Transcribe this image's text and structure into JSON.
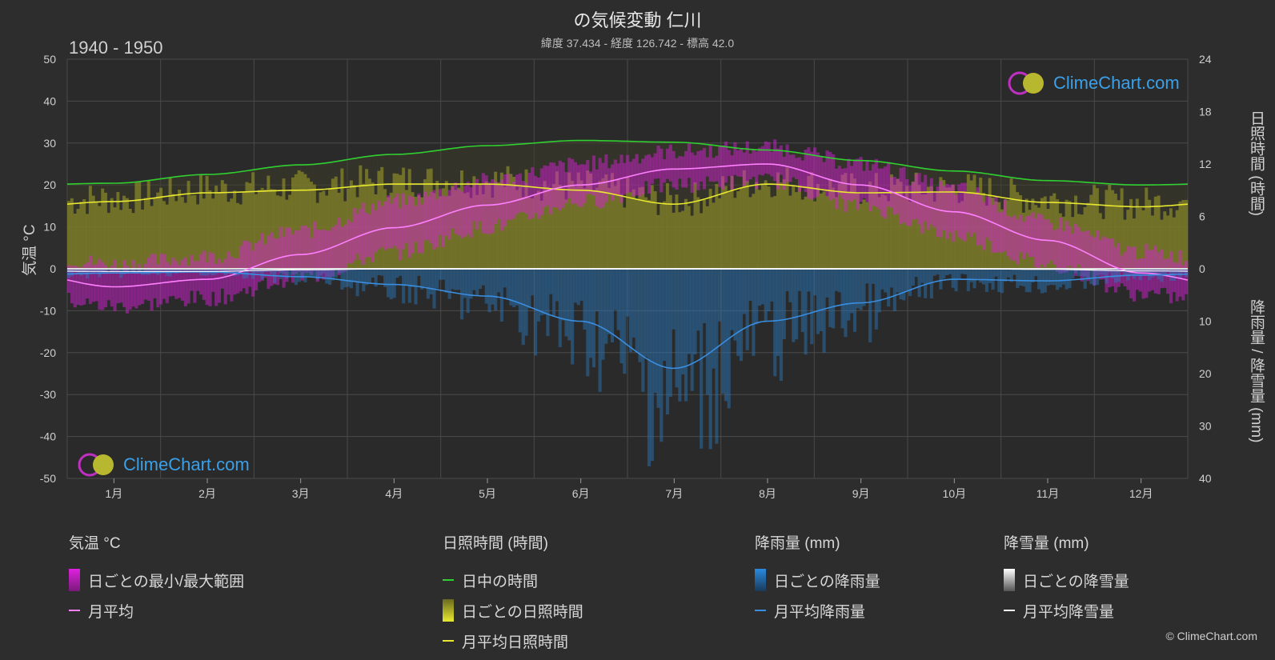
{
  "header": {
    "title": "の気候変動 仁川",
    "subtitle": "緯度 37.434 - 経度 126.742 - 標高 42.0",
    "period": "1940 - 1950"
  },
  "axes": {
    "left_label": "気温 °C",
    "right_top_label": "日照時間 (時間)",
    "right_bottom_label": "降雨量 / 降雪量 (mm)"
  },
  "logo_text": "ClimeChart.com",
  "copyright": "© ClimeChart.com",
  "legend": {
    "temp": {
      "title": "気温 °C",
      "range": "日ごとの最小/最大範囲",
      "mean": "月平均"
    },
    "sun": {
      "title": "日照時間 (時間)",
      "daylight": "日中の時間",
      "daily": "日ごとの日照時間",
      "mean": "月平均日照時間"
    },
    "rain": {
      "title": "降雨量 (mm)",
      "daily": "日ごとの降雨量",
      "mean": "月平均降雨量"
    },
    "snow": {
      "title": "降雪量 (mm)",
      "daily": "日ごとの降雪量",
      "mean": "月平均降雪量"
    }
  },
  "colors": {
    "temp_range": "#e020e0",
    "temp_mean": "#ff80ff",
    "daylight": "#30d030",
    "sunshine_fill": "#8a8a2a",
    "sunshine_mean": "#e8e830",
    "rain": "#2a7ac0",
    "rain_mean": "#3a8ee0",
    "snow_mean": "#ffffff"
  },
  "chart_data": {
    "type": "line",
    "categories": [
      "1月",
      "2月",
      "3月",
      "4月",
      "5月",
      "6月",
      "7月",
      "8月",
      "9月",
      "10月",
      "11月",
      "12月"
    ],
    "y_left": {
      "min": -50,
      "max": 50,
      "ticks": [
        50,
        40,
        30,
        20,
        10,
        0,
        -10,
        -20,
        -30,
        -40,
        -50
      ]
    },
    "y_right_sunshine": {
      "min": 0,
      "max": 24,
      "ticks": [
        24,
        18,
        12,
        6,
        0
      ]
    },
    "y_right_precip": {
      "min": 0,
      "max": 40,
      "ticks": [
        0,
        10,
        20,
        30,
        40
      ]
    },
    "series": [
      {
        "name": "日中の時間",
        "axis": "sunshine",
        "values": [
          9.8,
          10.8,
          11.9,
          13.1,
          14.1,
          14.7,
          14.5,
          13.6,
          12.4,
          11.2,
          10.1,
          9.6
        ]
      },
      {
        "name": "月平均日照時間",
        "axis": "sunshine",
        "values": [
          7.7,
          8.7,
          9.0,
          9.7,
          9.7,
          9.0,
          7.4,
          9.7,
          8.7,
          8.8,
          7.6,
          7.1
        ]
      },
      {
        "name": "月平均",
        "axis": "temp",
        "values": [
          -4.3,
          -2.5,
          3.4,
          9.8,
          15.2,
          20.0,
          23.8,
          25.0,
          20.0,
          13.6,
          6.8,
          -1.0
        ]
      },
      {
        "name": "日ごとの最小/最大範囲 (min)",
        "axis": "temp",
        "values": [
          -9,
          -7,
          -2,
          4,
          10,
          16,
          20,
          21,
          15,
          8,
          1,
          -6
        ]
      },
      {
        "name": "日ごとの最小/最大範囲 (max)",
        "axis": "temp",
        "values": [
          1,
          3,
          9,
          16,
          21,
          25,
          28,
          29,
          25,
          19,
          11,
          4
        ]
      },
      {
        "name": "月平均降雨量",
        "axis": "precip",
        "values": [
          0.8,
          0.6,
          1.5,
          3.0,
          5.2,
          10.0,
          19.0,
          10.0,
          6.5,
          2.0,
          2.3,
          1.2
        ]
      },
      {
        "name": "月平均降雪量",
        "axis": "precip",
        "values": [
          0.5,
          0.5,
          0.2,
          0,
          0,
          0,
          0,
          0,
          0,
          0,
          0.1,
          0.4
        ]
      }
    ]
  }
}
